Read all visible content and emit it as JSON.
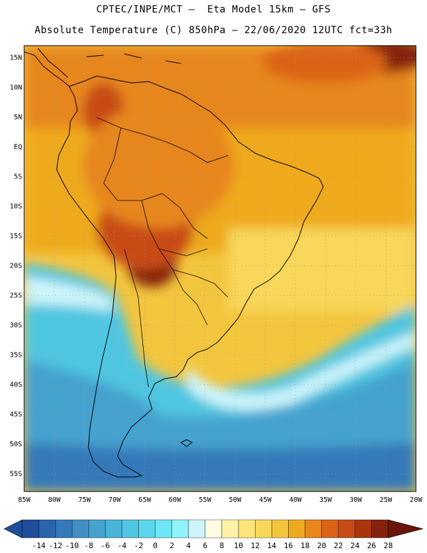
{
  "header": {
    "title_line1": "CPTEC/INPE/MCT –  Eta Model 15km – GFS",
    "title_line2": "Absolute Temperature (C) 850hPa – 22/06/2020 12UTC fct=33h"
  },
  "axes": {
    "lat_labels": [
      "15N",
      "10N",
      "5N",
      "EQ",
      "5S",
      "10S",
      "15S",
      "20S",
      "25S",
      "30S",
      "35S",
      "40S",
      "45S",
      "50S",
      "55S"
    ],
    "lon_labels": [
      "85W",
      "80W",
      "75W",
      "70W",
      "65W",
      "60W",
      "55W",
      "50W",
      "45W",
      "40W",
      "35W",
      "30W",
      "25W",
      "20W"
    ]
  },
  "colorbar": {
    "tick_labels": [
      "-14",
      "-12",
      "-10",
      "-8",
      "-6",
      "-4",
      "-2",
      "0",
      "2",
      "4",
      "6",
      "8",
      "10",
      "12",
      "14",
      "16",
      "18",
      "20",
      "22",
      "24",
      "26",
      "28"
    ],
    "colors": [
      "#1f4e9a",
      "#2a64ad",
      "#3479b9",
      "#3f8fc6",
      "#45a2cf",
      "#49b4d8",
      "#4fc6e1",
      "#5cd6ec",
      "#6ee6f4",
      "#8ff4fb",
      "#cdf5fb",
      "#fffbe3",
      "#fff2a8",
      "#fde57a",
      "#f8d75a",
      "#f3c53d",
      "#eeaa1f",
      "#e7861a",
      "#db6418",
      "#c84b15",
      "#a83510",
      "#85210c",
      "#6a140a"
    ]
  },
  "legend_colors": {
    "cold_deep": "#2c6db0",
    "cold": "#41a8d2",
    "cool": "#5ed5ea",
    "mild": "#fdf0b0",
    "warm": "#f8cf4e",
    "hot": "#eea51e",
    "very_hot": "#d9731a",
    "extreme": "#8a220d",
    "coast": "#000000",
    "grid": "#9a9a9a"
  }
}
